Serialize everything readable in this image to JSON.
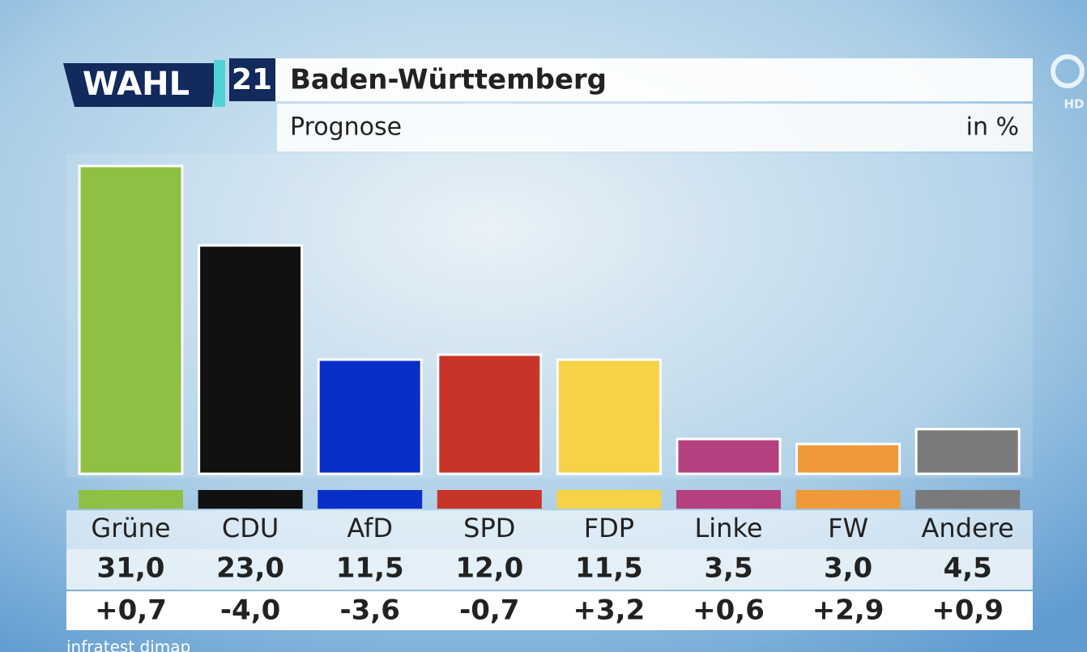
{
  "header": {
    "logo_word": "WAHL",
    "logo_year": "21",
    "channel": "HD"
  },
  "chart_data": {
    "type": "bar",
    "title": "Baden-Württemberg",
    "subtitle": "Prognose",
    "unit": "in %",
    "categories": [
      "Grüne",
      "CDU",
      "AfD",
      "SPD",
      "FDP",
      "Linke",
      "FW",
      "Andere"
    ],
    "values": [
      31.0,
      23.0,
      11.5,
      12.0,
      11.5,
      3.5,
      3.0,
      4.5
    ],
    "value_labels": [
      "31,0",
      "23,0",
      "11,5",
      "12,0",
      "11,5",
      "3,5",
      "3,0",
      "4,5"
    ],
    "changes": [
      0.7,
      -4.0,
      -3.6,
      -0.7,
      3.2,
      0.6,
      2.9,
      0.9
    ],
    "change_labels": [
      "+0,7",
      "-4,0",
      "-3,6",
      "-0,7",
      "+3,2",
      "+0,6",
      "+2,9",
      "+0,9"
    ],
    "colors": [
      "#8fc043",
      "#111111",
      "#0a2fc8",
      "#c9342a",
      "#f6d246",
      "#b5407f",
      "#ef9a3a",
      "#7a7a7c"
    ],
    "source": "infratest dimap"
  }
}
